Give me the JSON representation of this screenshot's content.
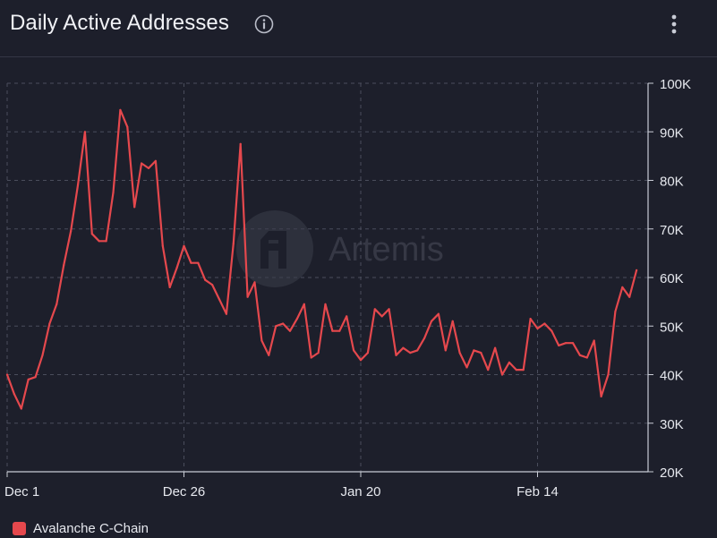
{
  "header": {
    "title": "Daily Active Addresses",
    "info_icon": "info-circle-icon",
    "menu_icon": "vertical-dots-menu-icon"
  },
  "watermark": {
    "text": "Artemis",
    "logo": "artemis-logo-icon"
  },
  "colors": {
    "background": "#1d1f2b",
    "line": "#e5484d",
    "grid": "#4a4d5c",
    "text": "#e6e8ee"
  },
  "chart_data": {
    "type": "line",
    "title": "Daily Active Addresses",
    "xlabel": "",
    "ylabel": "",
    "ylim": [
      20000,
      100000
    ],
    "yticks": [
      20000,
      30000,
      40000,
      50000,
      60000,
      70000,
      80000,
      90000,
      100000
    ],
    "ytick_labels": [
      "20K",
      "30K",
      "40K",
      "50K",
      "60K",
      "70K",
      "80K",
      "90K",
      "100K"
    ],
    "y_axis_position": "right",
    "x_start": "Dec 1",
    "xticks": [
      "Dec 1",
      "Dec 26",
      "Jan 20",
      "Feb 14"
    ],
    "grid": true,
    "legend_position": "bottom-left",
    "series": [
      {
        "name": "Avalanche C-Chain",
        "color": "#e5484d",
        "values": [
          40000,
          36000,
          33000,
          39000,
          39500,
          44000,
          50500,
          54500,
          62500,
          69500,
          79000,
          90000,
          69000,
          67500,
          67500,
          77500,
          94500,
          91000,
          74500,
          83500,
          82500,
          84000,
          66500,
          58000,
          62000,
          66500,
          63000,
          63000,
          59500,
          58500,
          55500,
          52500,
          67000,
          87500,
          56000,
          59000,
          47000,
          44000,
          50000,
          50500,
          49000,
          51500,
          54500,
          43500,
          44500,
          54500,
          49000,
          49000,
          52000,
          45000,
          43000,
          44500,
          53500,
          52000,
          53500,
          44000,
          45500,
          44500,
          45000,
          47500,
          51000,
          52500,
          45000,
          51000,
          44500,
          41500,
          45000,
          44500,
          41000,
          45500,
          40000,
          42500,
          41000,
          41000,
          51500,
          49500,
          50500,
          49000,
          46000,
          46500,
          46500,
          44000,
          43500,
          47000,
          35500,
          40000,
          53000,
          58000,
          56000,
          61500
        ]
      }
    ]
  }
}
